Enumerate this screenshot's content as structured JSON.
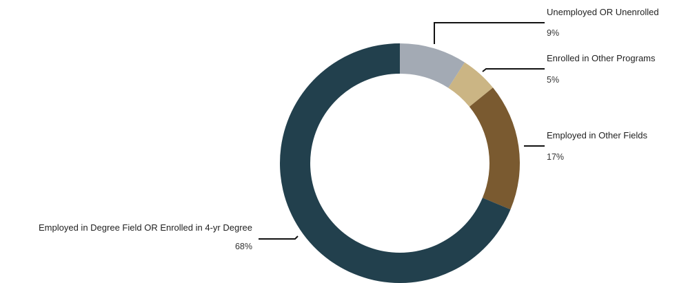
{
  "chart_data": {
    "type": "pie",
    "donut": true,
    "title": "",
    "slices": [
      {
        "label": "Unemployed OR Unenrolled",
        "value": 9,
        "display": "9%",
        "color": "#a3aab4"
      },
      {
        "label": "Enrolled in Other Programs",
        "value": 5,
        "display": "5%",
        "color": "#cbb584"
      },
      {
        "label": "Employed in Other Fields",
        "value": 17,
        "display": "17%",
        "color": "#7a5a30"
      },
      {
        "label": "Employed in Degree Field OR Enrolled in 4-yr Degree",
        "value": 68,
        "display": "68%",
        "color": "#22404d"
      }
    ],
    "legend": "none"
  }
}
